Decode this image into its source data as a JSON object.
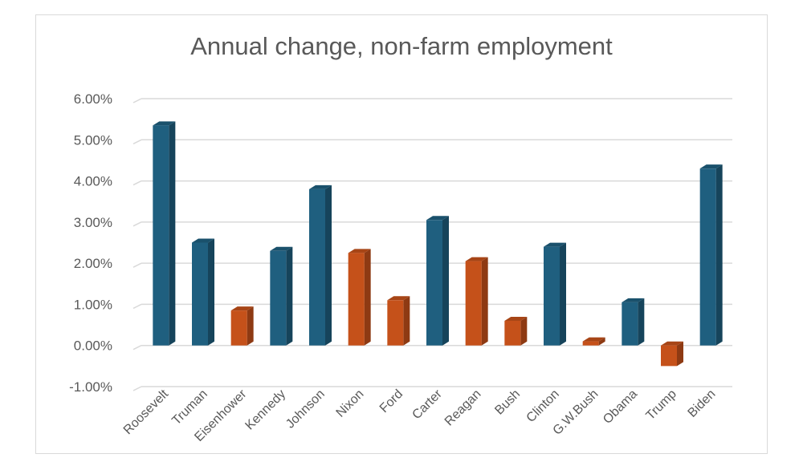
{
  "chart_data": {
    "type": "bar",
    "title": "Annual change, non-farm employment",
    "xlabel": "",
    "ylabel": "",
    "categories": [
      "Roosevelt",
      "Truman",
      "Eisenhower",
      "Kennedy",
      "Johnson",
      "Nixon",
      "Ford",
      "Carter",
      "Reagan",
      "Bush",
      "Clinton",
      "G.W.Bush",
      "Obama",
      "Trump",
      "Biden"
    ],
    "values": [
      0.0535,
      0.025,
      0.0085,
      0.023,
      0.038,
      0.0225,
      0.011,
      0.0305,
      0.0205,
      0.006,
      0.024,
      0.001,
      0.0105,
      -0.005,
      0.043
    ],
    "bar_colors": [
      "#1f5f7f",
      "#1f5f7f",
      "#c5511a",
      "#1f5f7f",
      "#1f5f7f",
      "#c5511a",
      "#c5511a",
      "#1f5f7f",
      "#c5511a",
      "#c5511a",
      "#1f5f7f",
      "#c5511a",
      "#1f5f7f",
      "#c5511a",
      "#1f5f7f"
    ],
    "ylim": [
      -0.01,
      0.06
    ],
    "yticks": [
      0.06,
      0.05,
      0.04,
      0.03,
      0.02,
      0.01,
      0.0,
      -0.01
    ],
    "ytick_labels": [
      "6.00%",
      "5.00%",
      "4.00%",
      "3.00%",
      "2.00%",
      "1.00%",
      "0.00%",
      "-1.00%"
    ],
    "grid": true,
    "legend": "none",
    "style": "3d-column"
  }
}
